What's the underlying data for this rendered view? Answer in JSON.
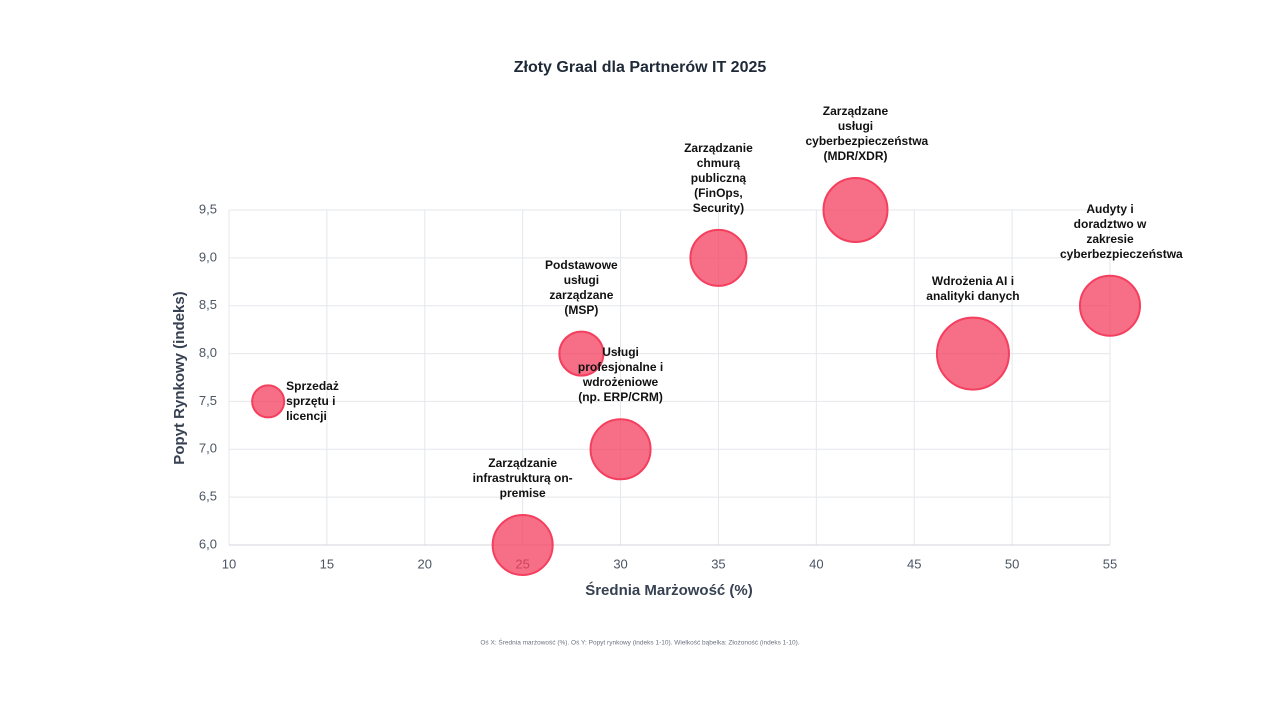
{
  "chart_data": {
    "type": "bubble",
    "title": "Złoty Graal dla Partnerów IT 2025",
    "x_label": "Średnia Marżowość (%)",
    "y_label": "Popyt Rynkowy (indeks)",
    "footnote": "Oś X: Średnia marżowość (%). Oś Y: Popyt rynkowy (indeks 1-10). Wielkość bąbelka: Złożoność (indeks 1-10).",
    "labels": [
      "Sprzedaż sprzętu i licencji",
      "Zarządzanie infrastrukturą on-premise",
      "Podstawowe usługi zarządzane (MSP)",
      "Usługi profesjonalne i wdrożeniowe (np. ERP/CRM)",
      "Zarządzanie chmurą publiczną (FinOps, Security)",
      "Zarządzane usługi cyberbezpieczeństwa (MDR/XDR)",
      "Wdrożenia AI i analityki danych",
      "Audyty i doradztwo w zakresie cyberbezpieczeństwa"
    ],
    "x": [
      12,
      25,
      28,
      30,
      35,
      42,
      48,
      55
    ],
    "y": [
      7.5,
      6.0,
      8.0,
      7.0,
      9.0,
      9.5,
      8.0,
      8.5
    ],
    "size": [
      4,
      7.5,
      5.5,
      7.5,
      7,
      8,
      9,
      7.5
    ],
    "color": "#f43f5e",
    "xlim": [
      10,
      55
    ],
    "ylim": [
      6,
      9.5
    ],
    "xticks": [
      10,
      15,
      20,
      25,
      30,
      35,
      40,
      45,
      50,
      55
    ],
    "yticks": [
      {
        "value": 6,
        "label": "6,0"
      },
      {
        "value": 6.5,
        "label": "6,5"
      },
      {
        "value": 7,
        "label": "7,0"
      },
      {
        "value": 7.5,
        "label": "7,5"
      },
      {
        "value": 8,
        "label": "8,0"
      },
      {
        "value": 8.5,
        "label": "8,5"
      },
      {
        "value": 9,
        "label": "9,0"
      },
      {
        "value": 9.5,
        "label": "9,5"
      }
    ],
    "grid": true
  }
}
